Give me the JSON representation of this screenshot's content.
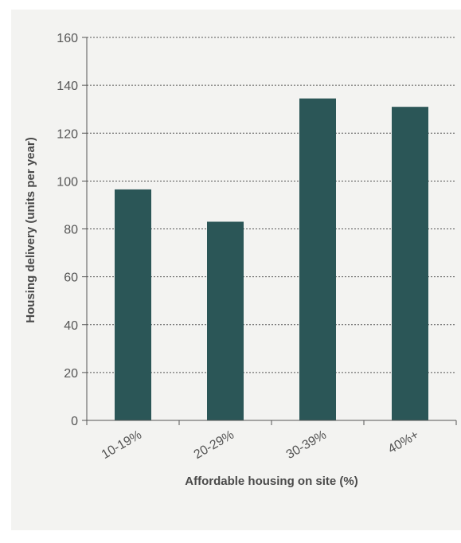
{
  "chart_data": {
    "type": "bar",
    "categories": [
      "10-19%",
      "20-29%",
      "30-39%",
      "40%+"
    ],
    "values": [
      96.5,
      83,
      134.5,
      131
    ],
    "xlabel": "Affordable housing on site (%)",
    "ylabel": "Housing delivery (units per year)",
    "ylim": [
      0,
      160
    ],
    "yticks": [
      0,
      20,
      40,
      60,
      80,
      100,
      120,
      140,
      160
    ],
    "grid": true,
    "bar_color": "#2b5657",
    "background_color": "#f3f3f1"
  }
}
